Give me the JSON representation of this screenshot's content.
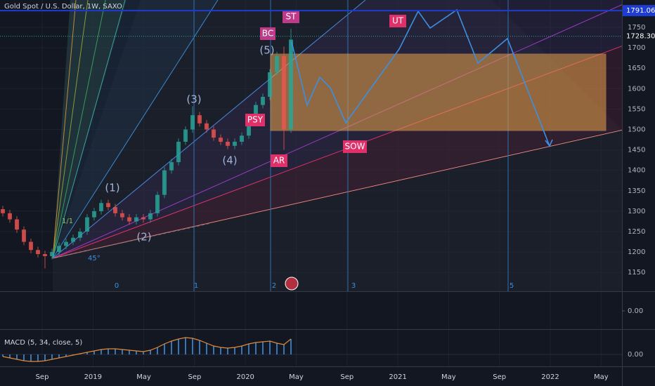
{
  "header": {
    "symbol": "Gold Spot / U.S. Dollar, 1W, SAXO"
  },
  "price_chart": {
    "ylim": [
      1104,
      1817
    ],
    "yticks": [
      1150,
      1200,
      1250,
      1300,
      1350,
      1400,
      1450,
      1500,
      1550,
      1600,
      1650,
      1700,
      1750
    ],
    "price_labels": [
      {
        "value": 1791.06,
        "label": "1791.06"
      },
      {
        "value": 1728.3,
        "label": "1728.30"
      }
    ],
    "candles": {
      "open": [
        1305,
        1295,
        1280,
        1255,
        1225,
        1205,
        1195,
        1190,
        1200,
        1215,
        1225,
        1235,
        1250,
        1285,
        1300,
        1320,
        1310,
        1295,
        1285,
        1275,
        1285,
        1280,
        1295,
        1340,
        1400,
        1420,
        1470,
        1500,
        1535,
        1515,
        1500,
        1480,
        1470,
        1460,
        1470,
        1485,
        1520,
        1560,
        1580,
        1640,
        1680,
        1500
      ],
      "high": [
        1313,
        1303,
        1288,
        1263,
        1233,
        1213,
        1203,
        1208,
        1223,
        1233,
        1243,
        1258,
        1293,
        1308,
        1328,
        1328,
        1318,
        1303,
        1293,
        1293,
        1293,
        1303,
        1348,
        1408,
        1428,
        1478,
        1508,
        1557,
        1543,
        1523,
        1508,
        1488,
        1478,
        1478,
        1493,
        1528,
        1568,
        1588,
        1648,
        1690,
        1703,
        1747
      ],
      "low": [
        1287,
        1272,
        1247,
        1217,
        1197,
        1187,
        1160,
        1182,
        1192,
        1207,
        1217,
        1227,
        1242,
        1277,
        1292,
        1302,
        1287,
        1277,
        1267,
        1267,
        1272,
        1272,
        1287,
        1332,
        1392,
        1412,
        1462,
        1492,
        1507,
        1492,
        1472,
        1462,
        1452,
        1452,
        1462,
        1477,
        1512,
        1552,
        1572,
        1632,
        1450,
        1492
      ],
      "close": [
        1295,
        1280,
        1255,
        1225,
        1205,
        1195,
        1190,
        1200,
        1215,
        1225,
        1235,
        1250,
        1285,
        1300,
        1320,
        1310,
        1295,
        1285,
        1275,
        1285,
        1280,
        1295,
        1340,
        1400,
        1420,
        1470,
        1500,
        1535,
        1515,
        1500,
        1480,
        1470,
        1460,
        1470,
        1485,
        1520,
        1560,
        1580,
        1640,
        1680,
        1500,
        1720
      ]
    }
  },
  "time_labels": [
    "Sep",
    "2019",
    "May",
    "Sep",
    "2020",
    "May",
    "Sep",
    "2021",
    "May",
    "Sep",
    "2022",
    "May"
  ],
  "annotations": {
    "wave1": "(1)",
    "wave2": "(2)",
    "wave3": "(3)",
    "wave4": "(4)",
    "wave5": "(5)",
    "psy": "PSY",
    "bc": "BC",
    "st": "ST",
    "ar": "AR",
    "sow": "SOW",
    "ut": "UT",
    "angle": "45°",
    "ratio": "1/1"
  },
  "fan_labels": [
    "0",
    "1",
    "2",
    "3",
    "5"
  ],
  "indicator_pane": {
    "ylim": [
      -1,
      1
    ],
    "yticks": [
      {
        "value": 0,
        "label": "0.00"
      }
    ]
  },
  "macd": {
    "label": "MACD (5, 34, close, 5)",
    "ylim": [
      -15,
      35
    ],
    "yticks": [
      {
        "value": 0,
        "label": "0.00"
      }
    ],
    "values": [
      -3,
      -5,
      -7,
      -9,
      -10,
      -10,
      -9,
      -7,
      -5,
      -3,
      -1,
      1,
      3,
      5,
      7,
      8,
      8,
      7,
      6,
      5,
      4,
      6,
      10,
      15,
      19,
      22,
      24,
      23,
      20,
      16,
      12,
      10,
      9,
      10,
      12,
      15,
      17,
      18,
      19,
      16,
      14,
      22
    ]
  }
}
